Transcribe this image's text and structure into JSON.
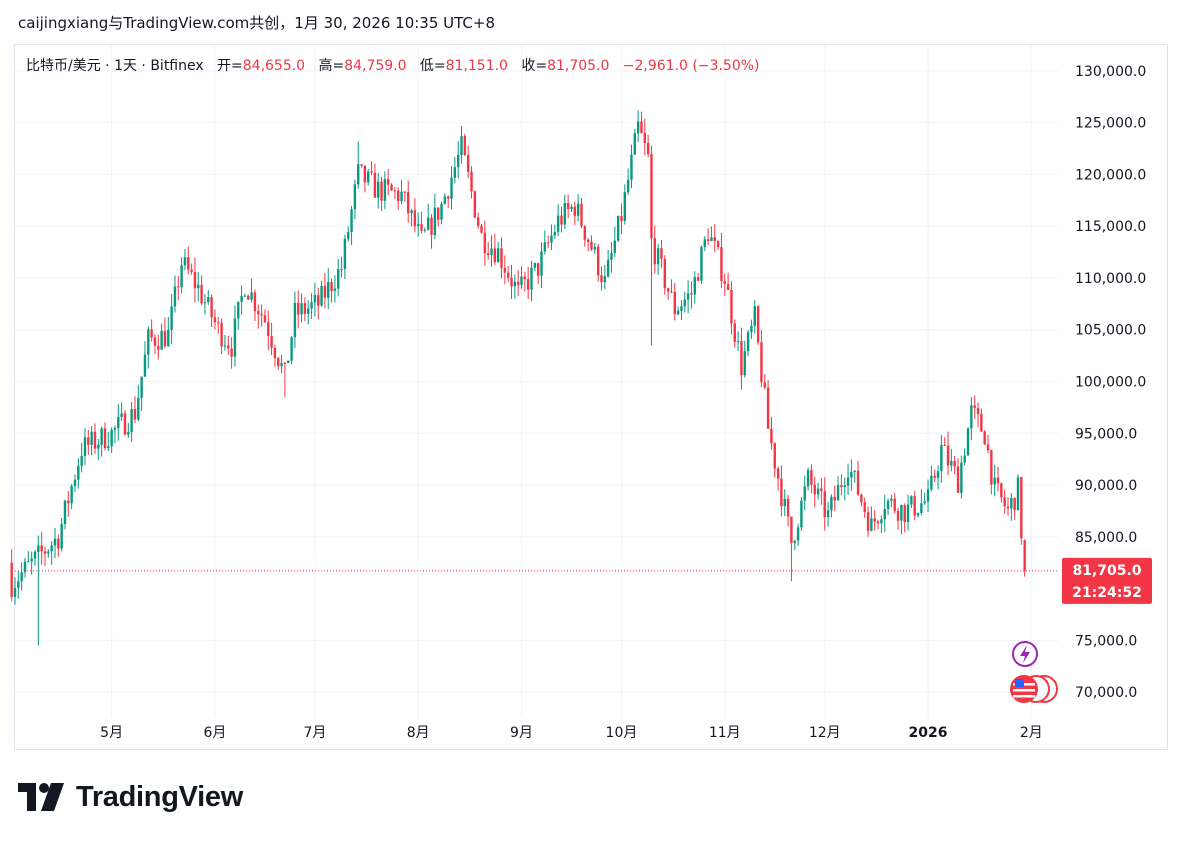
{
  "caption": "caijingxiang与TradingView.com共创，1月 30, 2026 10:35 UTC+8",
  "legend": {
    "symbol": "比特币/美元 · 1天 · Bitfinex",
    "open_label": "开=",
    "open": "84,655.0",
    "high_label": "高=",
    "high": "84,759.0",
    "low_label": "低=",
    "low": "81,151.0",
    "close_label": "收=",
    "close": "81,705.0",
    "change": "−2,961.0 (−3.50%)"
  },
  "price_tag": {
    "price": "81,705.0",
    "countdown": "21:24:52"
  },
  "brand": "TradingView",
  "colors": {
    "up": "#089981",
    "down": "#f23645",
    "grid": "#f0f3fa",
    "text": "#131722",
    "event_purple": "#9c27b0"
  },
  "icons": [
    "lightning-event-icon",
    "us-flag-economic-event-icon"
  ],
  "chart_data": {
    "type": "candlestick",
    "x_range": [
      "2025-04",
      "2026-01-30"
    ],
    "y_range": [
      67500,
      132500
    ],
    "y_ticks": [
      "130,000.0",
      "125,000.0",
      "120,000.0",
      "115,000.0",
      "110,000.0",
      "105,000.0",
      "100,000.0",
      "95,000.0",
      "90,000.0",
      "85,000.0",
      "75,000.0",
      "70,000.0"
    ],
    "x_ticks": [
      "5月",
      "6月",
      "7月",
      "8月",
      "9月",
      "10月",
      "11月",
      "12月",
      "2026",
      "2月"
    ],
    "last_price": 81705,
    "close_path": [
      {
        "x": "2025-04-15",
        "y": 85000
      },
      {
        "x": "2025-04-22",
        "y": 93500
      },
      {
        "x": "2025-05-01",
        "y": 95000
      },
      {
        "x": "2025-05-08",
        "y": 97000
      },
      {
        "x": "2025-05-12",
        "y": 104000
      },
      {
        "x": "2025-05-18",
        "y": 104500
      },
      {
        "x": "2025-05-22",
        "y": 111500
      },
      {
        "x": "2025-05-27",
        "y": 109000
      },
      {
        "x": "2025-06-02",
        "y": 105000
      },
      {
        "x": "2025-06-06",
        "y": 103500
      },
      {
        "x": "2025-06-10",
        "y": 109500
      },
      {
        "x": "2025-06-16",
        "y": 106000
      },
      {
        "x": "2025-06-22",
        "y": 100500
      },
      {
        "x": "2025-06-25",
        "y": 106500
      },
      {
        "x": "2025-07-02",
        "y": 107500
      },
      {
        "x": "2025-07-09",
        "y": 111000
      },
      {
        "x": "2025-07-14",
        "y": 120000
      },
      {
        "x": "2025-07-20",
        "y": 118500
      },
      {
        "x": "2025-07-27",
        "y": 118000
      },
      {
        "x": "2025-08-02",
        "y": 113500
      },
      {
        "x": "2025-08-08",
        "y": 117000
      },
      {
        "x": "2025-08-14",
        "y": 122500
      },
      {
        "x": "2025-08-20",
        "y": 114000
      },
      {
        "x": "2025-08-25",
        "y": 112500
      },
      {
        "x": "2025-08-31",
        "y": 108500
      },
      {
        "x": "2025-09-06",
        "y": 111000
      },
      {
        "x": "2025-09-12",
        "y": 115500
      },
      {
        "x": "2025-09-17",
        "y": 117000
      },
      {
        "x": "2025-09-22",
        "y": 113000
      },
      {
        "x": "2025-09-26",
        "y": 109500
      },
      {
        "x": "2025-10-01",
        "y": 116000
      },
      {
        "x": "2025-10-06",
        "y": 124500
      },
      {
        "x": "2025-10-09",
        "y": 121500
      },
      {
        "x": "2025-10-10",
        "y": 113500
      },
      {
        "x": "2025-10-17",
        "y": 107000
      },
      {
        "x": "2025-10-22",
        "y": 108500
      },
      {
        "x": "2025-10-27",
        "y": 114500
      },
      {
        "x": "2025-11-01",
        "y": 110000
      },
      {
        "x": "2025-11-06",
        "y": 101500
      },
      {
        "x": "2025-11-10",
        "y": 106000
      },
      {
        "x": "2025-11-14",
        "y": 95500
      },
      {
        "x": "2025-11-21",
        "y": 84500
      },
      {
        "x": "2025-11-26",
        "y": 90500
      },
      {
        "x": "2025-12-02",
        "y": 87000
      },
      {
        "x": "2025-12-08",
        "y": 92000
      },
      {
        "x": "2025-12-15",
        "y": 86000
      },
      {
        "x": "2025-12-19",
        "y": 88500
      },
      {
        "x": "2025-12-25",
        "y": 87500
      },
      {
        "x": "2026-01-01",
        "y": 88500
      },
      {
        "x": "2026-01-05",
        "y": 93500
      },
      {
        "x": "2026-01-10",
        "y": 90500
      },
      {
        "x": "2026-01-14",
        "y": 97000
      },
      {
        "x": "2026-01-18",
        "y": 95000
      },
      {
        "x": "2026-01-21",
        "y": 89500
      },
      {
        "x": "2026-01-25",
        "y": 87500
      },
      {
        "x": "2026-01-28",
        "y": 89500
      },
      {
        "x": "2026-01-30",
        "y": 81705
      }
    ],
    "extremes": [
      {
        "x": "2025-04-09",
        "y": 74500
      },
      {
        "x": "2025-05-22",
        "y": 112000
      },
      {
        "x": "2025-06-22",
        "y": 98500
      },
      {
        "x": "2025-07-14",
        "y": 123200
      },
      {
        "x": "2025-08-14",
        "y": 124400
      },
      {
        "x": "2025-10-06",
        "y": 126200
      },
      {
        "x": "2025-10-10",
        "y": 103500
      },
      {
        "x": "2025-11-21",
        "y": 80700
      },
      {
        "x": "2026-01-14",
        "y": 97900
      }
    ],
    "last_candle": {
      "open": 84655.0,
      "high": 84759.0,
      "low": 81151.0,
      "close": 81705.0
    }
  }
}
